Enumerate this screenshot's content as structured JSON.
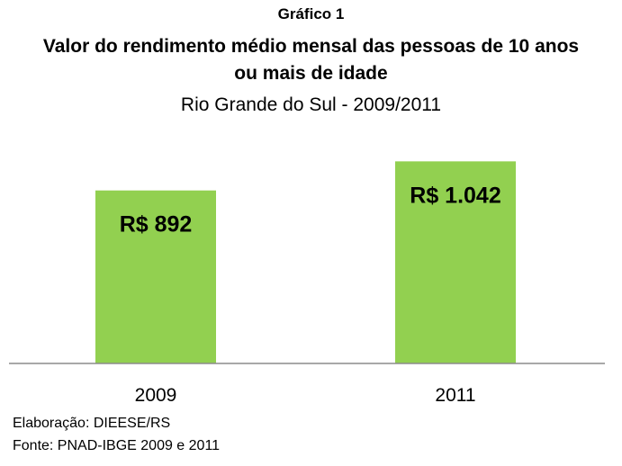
{
  "header": {
    "label": "Gráfico  1",
    "title_line1": "Valor do rendimento médio mensal das pessoas de 10 anos",
    "title_line2": "ou mais de idade",
    "subtitle": "Rio Grande do Sul  - 2009/2011"
  },
  "chart_data": {
    "type": "bar",
    "title": "Valor do rendimento médio mensal das pessoas de 10 anos ou mais de idade",
    "subtitle": "Rio Grande do Sul  - 2009/2011",
    "categories": [
      "2009",
      "2011"
    ],
    "values": [
      892,
      1042
    ],
    "data_labels": [
      "R$ 892",
      "R$ 1.042"
    ],
    "bar_color": "#92d050",
    "xlabel": "",
    "ylabel": "",
    "ylim": [
      0,
      1155
    ],
    "grid": false,
    "legend": "none"
  },
  "footer": {
    "elaboracao": "Elaboração: DIEESE/RS",
    "fonte": "Fonte: PNAD-IBGE 2009 e 2011"
  }
}
